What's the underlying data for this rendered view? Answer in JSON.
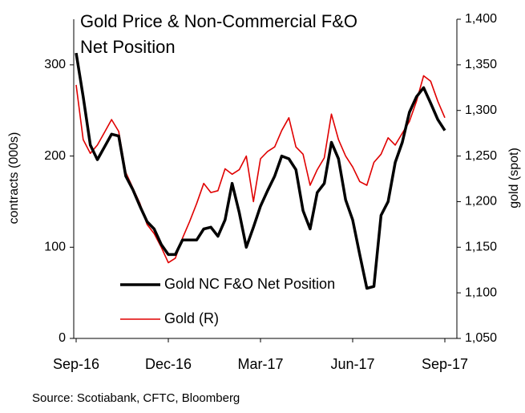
{
  "chart_data": {
    "type": "line",
    "title": [
      "Gold Price & Non-Commercial F&O",
      "Net Position"
    ],
    "ylabel": "contracts (000s)",
    "y2label": "gold (spot)",
    "source": "Source: Scotiabank, CFTC, Bloomberg",
    "categories": [
      "Sep-16",
      null,
      null,
      null,
      null,
      null,
      null,
      null,
      null,
      null,
      null,
      null,
      null,
      "Dec-16",
      null,
      null,
      null,
      null,
      null,
      null,
      null,
      null,
      null,
      null,
      null,
      null,
      "Mar-17",
      null,
      null,
      null,
      null,
      null,
      null,
      null,
      null,
      null,
      null,
      null,
      null,
      "Jun-17",
      null,
      null,
      null,
      null,
      null,
      null,
      null,
      null,
      null,
      null,
      null,
      null,
      "Sep-17"
    ],
    "series": [
      {
        "name": "Gold NC F&O Net Position",
        "color": "#000000",
        "axis": "y",
        "values": [
          313,
          265,
          212,
          196,
          210,
          224,
          222,
          178,
          163,
          145,
          128,
          120,
          103,
          92,
          92,
          108,
          108,
          108,
          120,
          122,
          112,
          130,
          170,
          138,
          100,
          122,
          145,
          162,
          178,
          200,
          197,
          185,
          140,
          120,
          160,
          170,
          215,
          197,
          152,
          130,
          92,
          55,
          57,
          135,
          150,
          193,
          215,
          248,
          265,
          275,
          258,
          240,
          228
        ]
      },
      {
        "name": "Gold (R)",
        "color": "#e00000",
        "axis": "y2",
        "values": [
          1328,
          1268,
          1253,
          1262,
          1276,
          1290,
          1277,
          1232,
          1215,
          1198,
          1175,
          1165,
          1150,
          1133,
          1138,
          1160,
          1178,
          1198,
          1220,
          1210,
          1212,
          1236,
          1230,
          1235,
          1250,
          1200,
          1247,
          1255,
          1260,
          1278,
          1292,
          1260,
          1252,
          1218,
          1235,
          1248,
          1296,
          1268,
          1250,
          1238,
          1222,
          1218,
          1243,
          1252,
          1270,
          1262,
          1275,
          1288,
          1310,
          1338,
          1332,
          1310,
          1292
        ]
      }
    ],
    "ylim": [
      0,
      350
    ],
    "yticks": [
      0,
      100,
      200,
      300
    ],
    "y2lim": [
      1050,
      1400
    ],
    "y2ticks": [
      {
        "value": 1050,
        "label": "1,050"
      },
      {
        "value": 1100,
        "label": "1,100"
      },
      {
        "value": 1150,
        "label": "1,150"
      },
      {
        "value": 1200,
        "label": "1,200"
      },
      {
        "value": 1250,
        "label": "1,250"
      },
      {
        "value": 1300,
        "label": "1,300"
      },
      {
        "value": 1350,
        "label": "1,350"
      },
      {
        "value": 1400,
        "label": "1,400"
      }
    ]
  }
}
